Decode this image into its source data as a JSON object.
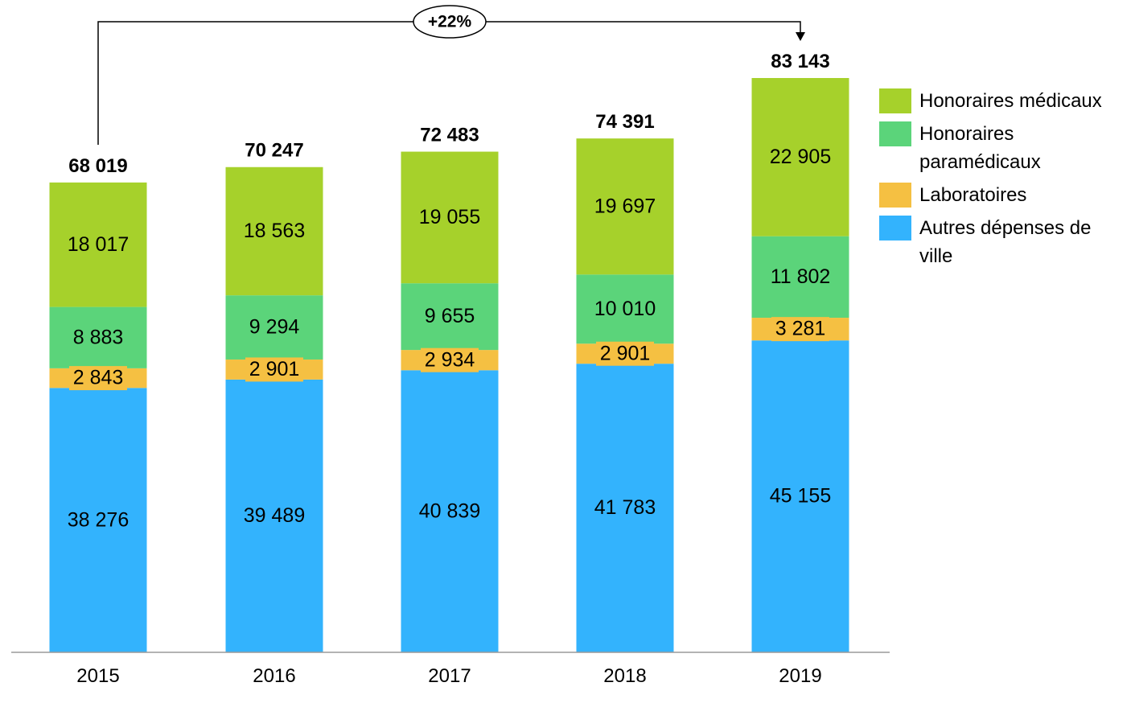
{
  "chart_data": {
    "type": "bar",
    "stacked": true,
    "categories": [
      "2015",
      "2016",
      "2017",
      "2018",
      "2019"
    ],
    "series": [
      {
        "name": "Autres dépenses de ville",
        "color": "#33b3fd",
        "values": [
          38276,
          39489,
          40839,
          41783,
          45155
        ],
        "labels": [
          "38 276",
          "39 489",
          "40 839",
          "41 783",
          "45 155"
        ]
      },
      {
        "name": "Laboratoires",
        "color": "#f5c042",
        "values": [
          2843,
          2901,
          2934,
          2901,
          3281
        ],
        "labels": [
          "2 843",
          "2 901",
          "2 934",
          "2 901",
          "3 281"
        ]
      },
      {
        "name": "Honoraires paramédicaux",
        "color": "#5bd47a",
        "values": [
          8883,
          9294,
          9655,
          10010,
          11802
        ],
        "labels": [
          "8 883",
          "9 294",
          "9 655",
          "10 010",
          "11 802"
        ]
      },
      {
        "name": "Honoraires médicaux",
        "color": "#a6d12b",
        "values": [
          18017,
          18563,
          19055,
          19697,
          22905
        ],
        "labels": [
          "18 017",
          "18 563",
          "19 055",
          "19 697",
          "22 905"
        ]
      }
    ],
    "totals": [
      68019,
      70247,
      72483,
      74391,
      83143
    ],
    "total_labels": [
      "68 019",
      "70 247",
      "72 483",
      "74 391",
      "83 143"
    ],
    "annotation": {
      "text": "+22%",
      "from": "2015",
      "to": "2019"
    },
    "legend": [
      "Honoraires médicaux",
      "Honoraires paramédicaux",
      "Laboratoires",
      "Autres dépenses de ville"
    ],
    "legend_position": "right",
    "ylim": [
      0,
      83143
    ],
    "grid": false,
    "title": "",
    "xlabel": "",
    "ylabel": ""
  }
}
